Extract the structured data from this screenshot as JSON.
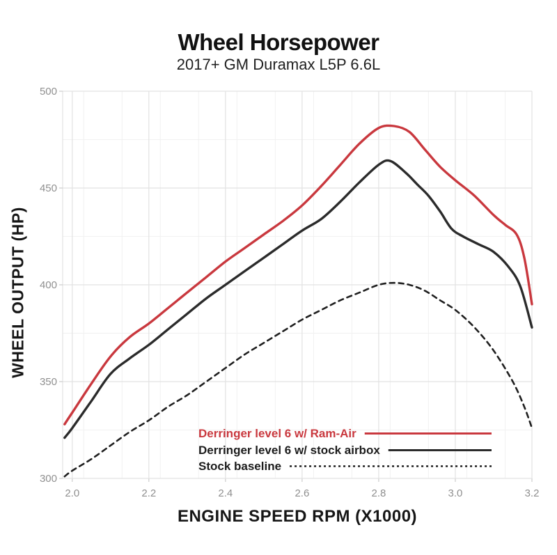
{
  "page": {
    "background": "#ffffff"
  },
  "chart_data": {
    "type": "line",
    "title": "Wheel Horsepower",
    "subtitle": "2017+ GM Duramax L5P 6.6L",
    "xlabel": "ENGINE SPEED RPM (X1000)",
    "ylabel": "WHEEL OUTPUT (HP)",
    "xlim": [
      1.975,
      3.2
    ],
    "ylim": [
      300,
      500
    ],
    "x_ticks": [
      2.0,
      2.2,
      2.4,
      2.6,
      2.8,
      3.0,
      3.2
    ],
    "x_tick_labels": [
      "2.0",
      "2.2",
      "2.4",
      "2.6",
      "2.8",
      "3.0",
      "3.2"
    ],
    "y_ticks": [
      300,
      350,
      400,
      450,
      500
    ],
    "y_tick_labels": [
      "300",
      "350",
      "400",
      "450",
      "500"
    ],
    "grid": true,
    "minor_grid": {
      "x_step": 0.1,
      "y_step": 25
    },
    "legend_position": "inside-bottom-right",
    "series": [
      {
        "name": "Derringer level 6 w/ Ram-Air",
        "slug": "derringer-ram-air",
        "color": "#c9383e",
        "style": "solid",
        "width": 3.4,
        "dash": "",
        "legend_dash": "",
        "legend_text_color": "#c9383e",
        "peak_hp": 482,
        "peak_rpm": 2.84,
        "points": [
          [
            1.98,
            328
          ],
          [
            2.0,
            334
          ],
          [
            2.05,
            349
          ],
          [
            2.1,
            363
          ],
          [
            2.15,
            373
          ],
          [
            2.2,
            380
          ],
          [
            2.25,
            388
          ],
          [
            2.3,
            396
          ],
          [
            2.35,
            404
          ],
          [
            2.4,
            412
          ],
          [
            2.45,
            419
          ],
          [
            2.5,
            426
          ],
          [
            2.55,
            433
          ],
          [
            2.6,
            441
          ],
          [
            2.65,
            451
          ],
          [
            2.7,
            462
          ],
          [
            2.75,
            473
          ],
          [
            2.8,
            481
          ],
          [
            2.84,
            482
          ],
          [
            2.88,
            479
          ],
          [
            2.92,
            470
          ],
          [
            2.96,
            461
          ],
          [
            3.0,
            454
          ],
          [
            3.05,
            446
          ],
          [
            3.1,
            436
          ],
          [
            3.13,
            431
          ],
          [
            3.16,
            426
          ],
          [
            3.18,
            414
          ],
          [
            3.2,
            390
          ]
        ]
      },
      {
        "name": "Derringer level 6 w/ stock airbox",
        "slug": "derringer-stock-airbox",
        "color": "#2b2b2b",
        "style": "solid",
        "width": 3.4,
        "dash": "",
        "legend_dash": "",
        "legend_text_color": "#1c1c1c",
        "peak_hp": 464,
        "peak_rpm": 2.83,
        "points": [
          [
            1.98,
            321
          ],
          [
            2.0,
            326
          ],
          [
            2.05,
            340
          ],
          [
            2.1,
            354
          ],
          [
            2.15,
            362
          ],
          [
            2.2,
            369
          ],
          [
            2.25,
            377
          ],
          [
            2.3,
            385
          ],
          [
            2.35,
            393
          ],
          [
            2.4,
            400
          ],
          [
            2.45,
            407
          ],
          [
            2.5,
            414
          ],
          [
            2.55,
            421
          ],
          [
            2.6,
            428
          ],
          [
            2.65,
            434
          ],
          [
            2.7,
            443
          ],
          [
            2.75,
            453
          ],
          [
            2.8,
            462
          ],
          [
            2.83,
            464
          ],
          [
            2.87,
            458
          ],
          [
            2.9,
            452
          ],
          [
            2.93,
            446
          ],
          [
            2.96,
            438
          ],
          [
            2.99,
            429
          ],
          [
            3.02,
            425
          ],
          [
            3.06,
            421
          ],
          [
            3.1,
            417
          ],
          [
            3.14,
            409
          ],
          [
            3.17,
            399
          ],
          [
            3.2,
            378
          ]
        ]
      },
      {
        "name": "Stock baseline",
        "slug": "stock-baseline",
        "color": "#1f1f1f",
        "style": "dashed",
        "width": 2.6,
        "dash": "7 6",
        "legend_dash": "3 4",
        "legend_text_color": "#1c1c1c",
        "peak_hp": 401,
        "peak_rpm": 2.84,
        "points": [
          [
            1.98,
            301
          ],
          [
            2.0,
            304
          ],
          [
            2.05,
            310
          ],
          [
            2.1,
            317
          ],
          [
            2.15,
            324
          ],
          [
            2.2,
            330
          ],
          [
            2.25,
            337
          ],
          [
            2.3,
            343
          ],
          [
            2.35,
            350
          ],
          [
            2.4,
            357
          ],
          [
            2.45,
            364
          ],
          [
            2.5,
            370
          ],
          [
            2.55,
            376
          ],
          [
            2.6,
            382
          ],
          [
            2.65,
            387
          ],
          [
            2.7,
            392
          ],
          [
            2.75,
            396
          ],
          [
            2.8,
            400
          ],
          [
            2.84,
            401
          ],
          [
            2.88,
            400
          ],
          [
            2.92,
            397
          ],
          [
            2.96,
            392
          ],
          [
            3.0,
            387
          ],
          [
            3.05,
            378
          ],
          [
            3.1,
            366
          ],
          [
            3.15,
            350
          ],
          [
            3.18,
            337
          ],
          [
            3.2,
            326
          ]
        ]
      }
    ],
    "style": {
      "grid_major_color": "#e2e2e2",
      "grid_minor_color": "#f1f1f1",
      "tick_mark_color": "#cccccc",
      "tick_label_color": "#8f8f8f",
      "tick_label_size": 15,
      "legend_font_size": 17
    }
  }
}
